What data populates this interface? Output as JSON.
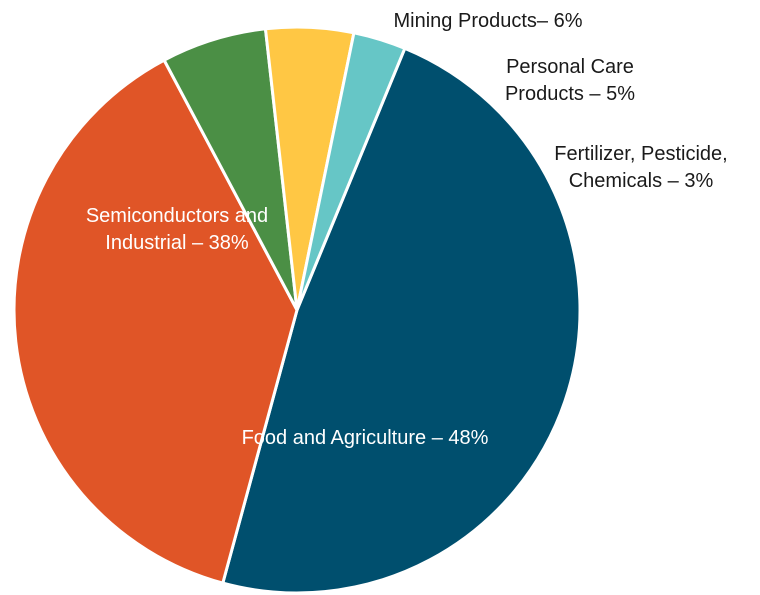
{
  "chart_data": {
    "type": "pie",
    "title": "",
    "slices": [
      {
        "label_lines": [
          "Food and Agriculture – 48%"
        ],
        "value": 48,
        "color": "#004f6e",
        "label_position": "inside"
      },
      {
        "label_lines": [
          "Semiconductors and",
          "Industrial – 38%"
        ],
        "value": 38,
        "color": "#e05527",
        "label_position": "inside"
      },
      {
        "label_lines": [
          "Mining Products– 6%"
        ],
        "value": 6,
        "color": "#4b8f45",
        "label_position": "outside"
      },
      {
        "label_lines": [
          "Personal Care",
          "Products – 5%"
        ],
        "value": 5,
        "color": "#ffc744",
        "label_position": "outside"
      },
      {
        "label_lines": [
          "Fertilizer, Pesticide,",
          "Chemicals – 3%"
        ],
        "value": 3,
        "color": "#66c6c6",
        "label_position": "outside"
      }
    ]
  }
}
